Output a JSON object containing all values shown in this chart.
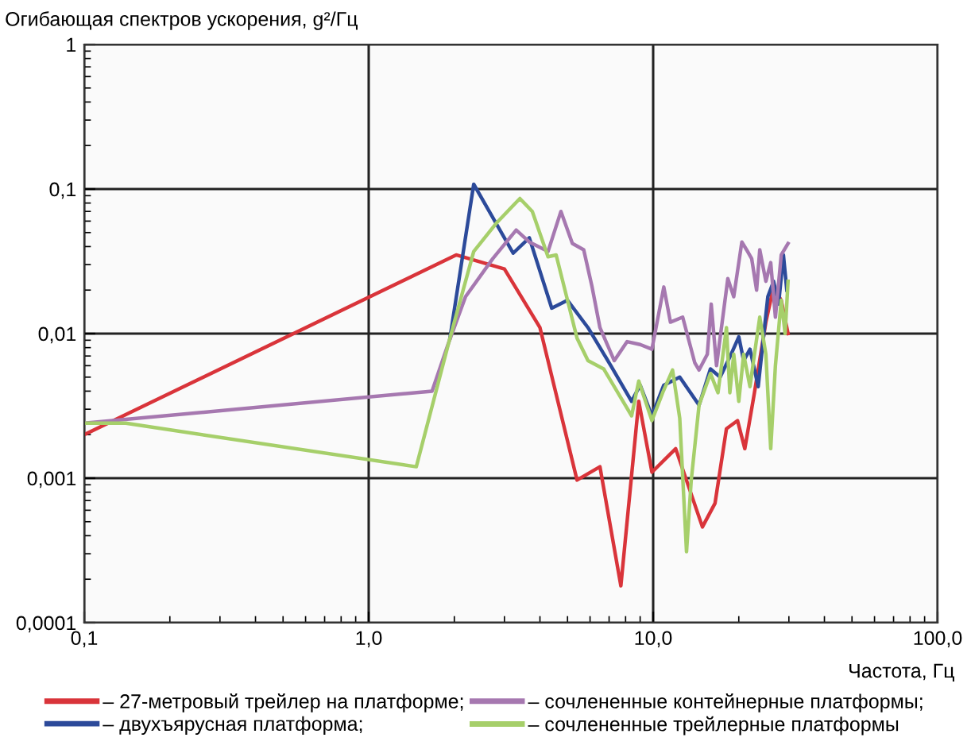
{
  "chart_data": {
    "type": "line",
    "ylabel": "Огибающая спектров ускорения, g²/Гц",
    "xlabel": "Частота, Гц",
    "log": "xy",
    "grid": true,
    "legend": "bottom",
    "xlim": [
      0.1,
      100
    ],
    "xticks": [
      {
        "value": 0.1,
        "label": "0,1"
      },
      {
        "value": 1,
        "label": "1,0"
      },
      {
        "value": 10,
        "label": "10,0"
      },
      {
        "value": 100,
        "label": "100,0"
      }
    ],
    "ylim": [
      0.0001,
      1
    ],
    "yticks": [
      {
        "value": 0.0001,
        "label": "0,0001"
      },
      {
        "value": 0.001,
        "label": "0,001"
      },
      {
        "value": 0.01,
        "label": "0,01"
      },
      {
        "value": 0.1,
        "label": "0,1"
      },
      {
        "value": 1,
        "label": "1"
      }
    ],
    "series": [
      {
        "name": "– 27-метровый трейлер на платформе;",
        "color": "#d9343a",
        "x": [
          0.1,
          2.03,
          3.0,
          4.0,
          5.4,
          6.5,
          7.7,
          8.9,
          9.9,
          12,
          14.9,
          16.5,
          18.1,
          19.8,
          21,
          22.7,
          24.9,
          26.5,
          28.2,
          29.8
        ],
        "values": [
          0.002,
          0.035,
          0.028,
          0.011,
          0.00097,
          0.0012,
          0.00018,
          0.0034,
          0.0011,
          0.0016,
          0.00046,
          0.00067,
          0.0022,
          0.0025,
          0.0016,
          0.0039,
          0.012,
          0.021,
          0.017,
          0.01
        ]
      },
      {
        "name": "– двухъярусная платформа;",
        "color": "#2c4a9a",
        "x": [
          1.93,
          2.34,
          3.22,
          3.67,
          4.4,
          5.0,
          5.9,
          7.1,
          8.4,
          9.0,
          9.9,
          10.9,
          12.4,
          14.5,
          15.9,
          17.2,
          18.8,
          20,
          20.8,
          21.9,
          23.4,
          25.3,
          26.5,
          27.6,
          28.7,
          29.5
        ],
        "values": [
          0.0093,
          0.108,
          0.036,
          0.046,
          0.015,
          0.017,
          0.011,
          0.006,
          0.0034,
          0.0044,
          0.0027,
          0.0044,
          0.005,
          0.0032,
          0.0057,
          0.005,
          0.0072,
          0.0095,
          0.0065,
          0.0078,
          0.0043,
          0.018,
          0.023,
          0.016,
          0.035,
          0.02
        ]
      },
      {
        "name": "– сочлененные контейнерные платформы;",
        "color": "#a678b0",
        "x": [
          0.1,
          1.67,
          1.9,
          2.19,
          2.73,
          3.3,
          3.67,
          4.27,
          4.74,
          5.2,
          5.7,
          6.1,
          6.5,
          7.3,
          8.1,
          9.0,
          9.9,
          10.9,
          11.5,
          12.7,
          14,
          14.5,
          15.5,
          16,
          16.7,
          18.3,
          19.2,
          20.5,
          21.3,
          22.2,
          23.1,
          23.7,
          24.9,
          25.9,
          26.9,
          28.2,
          29.8
        ],
        "values": [
          0.0024,
          0.004,
          0.0084,
          0.018,
          0.033,
          0.052,
          0.043,
          0.037,
          0.07,
          0.042,
          0.038,
          0.021,
          0.011,
          0.0065,
          0.0088,
          0.0084,
          0.0078,
          0.021,
          0.012,
          0.013,
          0.0063,
          0.0056,
          0.0072,
          0.016,
          0.006,
          0.024,
          0.018,
          0.043,
          0.038,
          0.033,
          0.02,
          0.038,
          0.023,
          0.031,
          0.013,
          0.035,
          0.042
        ]
      },
      {
        "name": "– сочлененные трейлерные платформы",
        "color": "#a6cf6a",
        "x": [
          0.1,
          0.14,
          1.47,
          1.93,
          2.34,
          2.83,
          3.4,
          3.76,
          4.27,
          4.56,
          5.4,
          5.9,
          6.7,
          8.4,
          8.9,
          9.9,
          10.8,
          11.7,
          12.4,
          13.1,
          13.6,
          14.5,
          15.9,
          16.9,
          18.1,
          18.6,
          19.2,
          20,
          20.8,
          21.9,
          22.7,
          23.7,
          24.9,
          25.9,
          26.9,
          28.2,
          29.1,
          29.8
        ],
        "values": [
          0.0024,
          0.0024,
          0.0012,
          0.0093,
          0.037,
          0.059,
          0.086,
          0.07,
          0.034,
          0.035,
          0.0093,
          0.0065,
          0.0057,
          0.0027,
          0.0047,
          0.0025,
          0.0039,
          0.0056,
          0.0026,
          0.00031,
          0.00095,
          0.0032,
          0.0053,
          0.0039,
          0.011,
          0.0039,
          0.0072,
          0.0034,
          0.0072,
          0.0043,
          0.0072,
          0.013,
          0.0072,
          0.0016,
          0.006,
          0.017,
          0.01,
          0.023
        ]
      }
    ]
  }
}
